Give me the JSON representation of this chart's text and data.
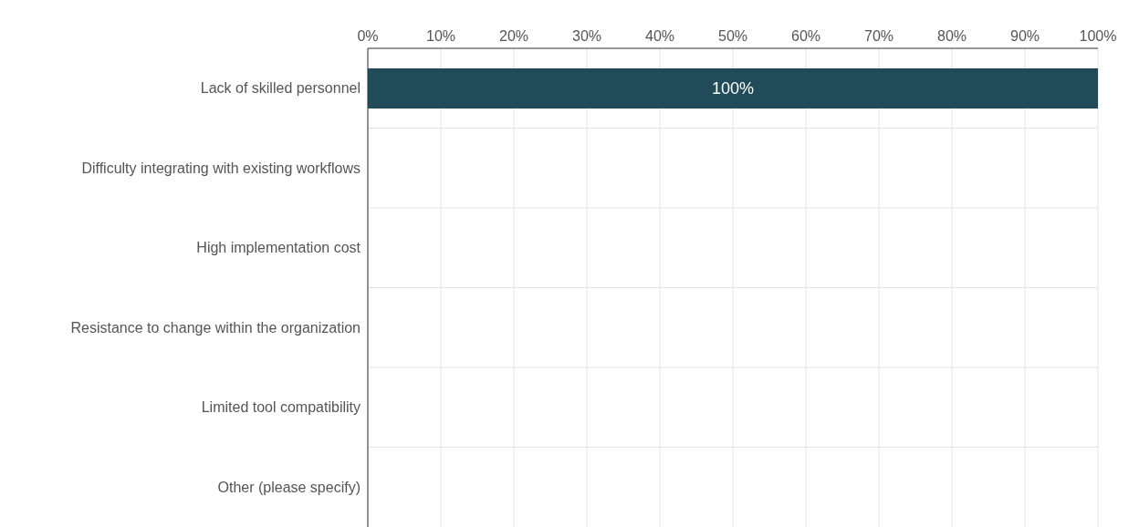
{
  "chart_data": {
    "type": "bar",
    "orientation": "horizontal",
    "categories": [
      "Lack of skilled personnel",
      "Difficulty integrating with existing workflows",
      "High implementation cost",
      "Resistance to change within the organization",
      "Limited tool compatibility",
      "Other (please specify)"
    ],
    "values": [
      100,
      0,
      0,
      0,
      0,
      0
    ],
    "value_labels": [
      "100%",
      null,
      null,
      null,
      null,
      null
    ],
    "color": "#224b5a",
    "xlim": [
      0,
      100
    ],
    "xticks": [
      {
        "value": 0,
        "label": "0%"
      },
      {
        "value": 10,
        "label": "10%"
      },
      {
        "value": 20,
        "label": "20%"
      },
      {
        "value": 30,
        "label": "30%"
      },
      {
        "value": 40,
        "label": "40%"
      },
      {
        "value": 50,
        "label": "50%"
      },
      {
        "value": 60,
        "label": "60%"
      },
      {
        "value": 70,
        "label": "70%"
      },
      {
        "value": 80,
        "label": "80%"
      },
      {
        "value": 90,
        "label": "90%"
      },
      {
        "value": 100,
        "label": "100%"
      }
    ],
    "grid": true
  }
}
